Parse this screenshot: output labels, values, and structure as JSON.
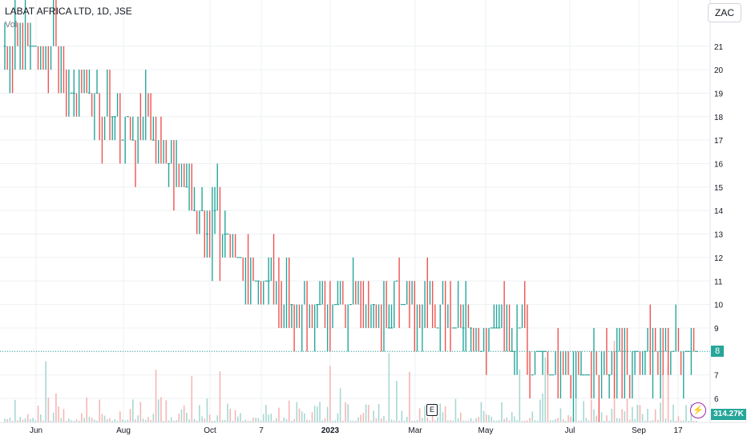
{
  "header": {
    "title": "LABAT AFRICA LTD, 1D, JSE",
    "indicator": "Vol"
  },
  "currency_button": "ZAC",
  "last_price_label": "8",
  "volume_label": "314.27K",
  "earnings_marker": "E",
  "alert_icon": "lightning-icon",
  "colors": {
    "up": "#26a69a",
    "down": "#ef5350",
    "up_vol": "#a7d8d3",
    "down_vol": "#f5b7b5",
    "grid": "#eef0f3"
  },
  "chart_data": {
    "type": "candlestick",
    "title": "LABAT AFRICA LTD, 1D, JSE",
    "ylim": [
      5.5,
      22.5
    ],
    "ytick_labels": [
      "6",
      "7",
      "8",
      "9",
      "10",
      "11",
      "12",
      "13",
      "14",
      "15",
      "16",
      "17",
      "18",
      "19",
      "20",
      "21"
    ],
    "xtick_labels": [
      "Jun",
      "Aug",
      "Oct",
      "7",
      "2023",
      "Mar",
      "May",
      "Jul",
      "Sep",
      "17"
    ],
    "grid": true,
    "last_price": 8,
    "last_volume": "314.27K",
    "segments": [
      {
        "from": 0,
        "to": 10,
        "start": 21,
        "end": 21
      },
      {
        "from": 10,
        "to": 40,
        "start": 21,
        "end": 18
      },
      {
        "from": 40,
        "to": 60,
        "start": 18,
        "end": 17
      },
      {
        "from": 60,
        "to": 75,
        "start": 17,
        "end": 14
      },
      {
        "from": 75,
        "to": 90,
        "start": 14,
        "end": 12
      },
      {
        "from": 90,
        "to": 110,
        "start": 12,
        "end": 10
      },
      {
        "from": 110,
        "to": 130,
        "start": 10,
        "end": 10
      },
      {
        "from": 130,
        "to": 165,
        "start": 10,
        "end": 10
      },
      {
        "from": 165,
        "to": 182,
        "start": 10,
        "end": 9
      },
      {
        "from": 182,
        "to": 205,
        "start": 9,
        "end": 8
      },
      {
        "from": 205,
        "to": 230,
        "start": 8,
        "end": 7
      },
      {
        "from": 230,
        "to": 250,
        "start": 7,
        "end": 8
      },
      {
        "from": 250,
        "to": 271,
        "start": 8,
        "end": 8
      }
    ]
  }
}
